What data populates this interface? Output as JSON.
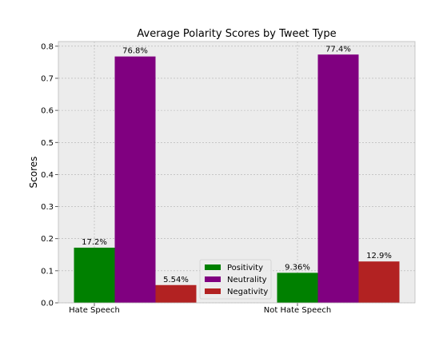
{
  "chart_data": {
    "type": "bar",
    "title": "Average Polarity Scores by Tweet Type",
    "xlabel": "",
    "ylabel": "Scores",
    "categories": [
      "Hate Speech",
      "Not Hate Speech"
    ],
    "series": [
      {
        "name": "Positivity",
        "color": "#008000",
        "values": [
          0.172,
          0.0936
        ],
        "labels": [
          "17.2%",
          "9.36%"
        ]
      },
      {
        "name": "Neutrality",
        "color": "#800080",
        "values": [
          0.768,
          0.774
        ],
        "labels": [
          "76.8%",
          "77.4%"
        ]
      },
      {
        "name": "Negativity",
        "color": "#b22222",
        "values": [
          0.0554,
          0.129
        ],
        "labels": [
          "5.54%",
          "12.9%"
        ]
      }
    ],
    "ylim": [
      0,
      0.8145
    ],
    "yticks": [
      "0.0",
      "0.1",
      "0.2",
      "0.3",
      "0.4",
      "0.5",
      "0.6",
      "0.7",
      "0.8"
    ],
    "grid": true,
    "legend_position": "lower center",
    "background": "#ececec",
    "grid_color": "#b0b0b0"
  }
}
